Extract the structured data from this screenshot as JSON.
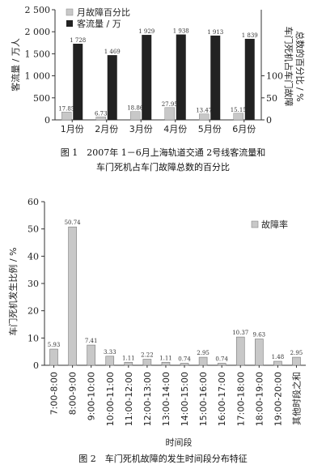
{
  "chart_data": [
    {
      "type": "bar",
      "caption": [
        "图 1　2007年 1－6月上海轨道交通 2号线客流量和",
        "车门死机占车门故障总数的百分比"
      ],
      "categories": [
        "1月份",
        "2月份",
        "3月份",
        "4月份",
        "5月份",
        "6月份"
      ],
      "series": [
        {
          "name": "月故障百分比",
          "axis": "right",
          "values": [
            17.85,
            6.73,
            18.86,
            27.95,
            13.47,
            15.15
          ],
          "color": "#c8c8c8"
        },
        {
          "name": "客流量 / 万",
          "axis": "left",
          "values": [
            1728,
            1469,
            1929,
            1938,
            1913,
            1839
          ],
          "color": "#222222"
        }
      ],
      "data_labels_second": [
        "1 728",
        "1 469",
        "1 929",
        "1 938",
        "1 913",
        "1 839"
      ],
      "ylabel": "客流量 / 万人",
      "y2label": [
        "车门死机占车门故障",
        "总数的百分比 / %"
      ],
      "ylim": [
        0,
        2500
      ],
      "yticks": [
        0,
        500,
        1000,
        1500,
        2000,
        2500
      ],
      "yticklabels": [
        "0",
        "500",
        "1 000",
        "1 500",
        "2 000",
        "2 500"
      ],
      "y2lim": [
        0,
        250
      ],
      "y2ticks": [
        0,
        50,
        100
      ],
      "y2ticklabels": [
        "0",
        "50",
        "100"
      ],
      "legend": "top-left"
    },
    {
      "type": "bar",
      "caption": "图 2　车门死机故障的发生时间段分布特征",
      "categories": [
        "7:00-8:00",
        "8:00-9:00",
        "9:00-10:00",
        "10:00-11:00",
        "11:00-12:00",
        "12:00-13:00",
        "13:00-14:00",
        "14:00-15:00",
        "15:00-16:00",
        "16:00-17:00",
        "17:00-18:00",
        "18:00-19:00",
        "19:00-20:00",
        "其他时段之和"
      ],
      "series": [
        {
          "name": "故障率",
          "values": [
            5.93,
            50.74,
            7.41,
            3.33,
            1.11,
            2.22,
            1.11,
            0.74,
            2.95,
            0.74,
            10.37,
            9.63,
            1.48,
            2.95
          ],
          "color": "#c8c8c8"
        }
      ],
      "xlabel": "时间段",
      "ylabel": "车门死机发生比例 / %",
      "ylim": [
        0,
        60
      ],
      "yticks": [
        0,
        10,
        20,
        30,
        40,
        50,
        60
      ],
      "legend": "top-right"
    }
  ]
}
